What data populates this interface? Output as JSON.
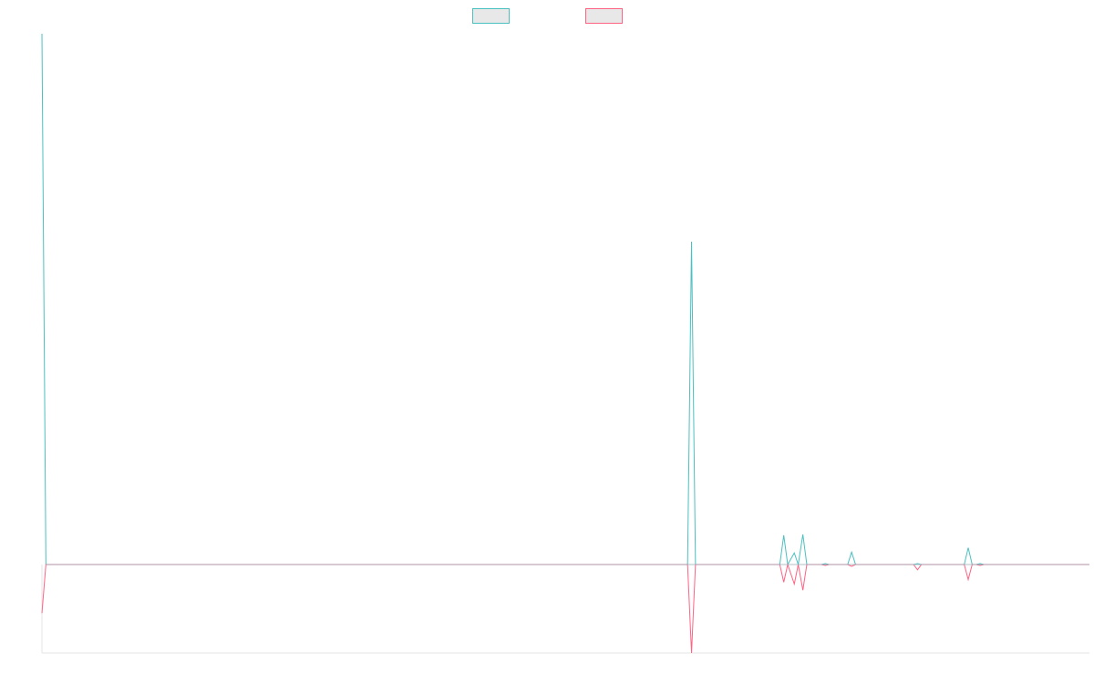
{
  "chart_data": {
    "type": "line",
    "title": "",
    "xlabel": "",
    "ylabel": "",
    "grid": false,
    "legend": {
      "position": "top-center"
    },
    "xlim": [
      0,
      159
    ],
    "ylim": [
      -100,
      600
    ],
    "series": [
      {
        "name": "",
        "color": "#4bc0c0",
        "fill": "#e8e8e8",
        "points": [
          [
            0,
            600
          ],
          [
            0.6,
            0
          ],
          [
            98,
            0
          ],
          [
            98.6,
            365
          ],
          [
            99.2,
            0
          ],
          [
            112,
            0
          ],
          [
            112.6,
            33
          ],
          [
            113.2,
            0
          ],
          [
            114.2,
            13
          ],
          [
            114.8,
            0
          ],
          [
            115.5,
            34
          ],
          [
            116.1,
            0
          ],
          [
            118.3,
            0
          ],
          [
            118.9,
            1
          ],
          [
            119.5,
            0
          ],
          [
            122.3,
            0
          ],
          [
            122.9,
            14
          ],
          [
            123.5,
            0
          ],
          [
            132.3,
            0
          ],
          [
            132.9,
            1
          ],
          [
            133.5,
            0
          ],
          [
            140,
            0
          ],
          [
            140.6,
            19
          ],
          [
            141.2,
            0
          ],
          [
            141.8,
            0
          ],
          [
            142.4,
            1
          ],
          [
            143,
            0
          ],
          [
            159,
            0
          ]
        ]
      },
      {
        "name": "",
        "color": "#ff6384",
        "fill": "#e8e8e8",
        "points": [
          [
            0,
            -55
          ],
          [
            0.6,
            0
          ],
          [
            98,
            0
          ],
          [
            98.6,
            -100
          ],
          [
            99.2,
            0
          ],
          [
            112,
            0
          ],
          [
            112.6,
            -20
          ],
          [
            113.2,
            0
          ],
          [
            114.2,
            -22
          ],
          [
            114.8,
            0
          ],
          [
            115.5,
            -29
          ],
          [
            116.1,
            0
          ],
          [
            118.3,
            0
          ],
          [
            118.9,
            -1
          ],
          [
            119.5,
            0
          ],
          [
            122.3,
            0
          ],
          [
            122.9,
            -2
          ],
          [
            123.5,
            0
          ],
          [
            132.3,
            0
          ],
          [
            132.9,
            -6
          ],
          [
            133.5,
            0
          ],
          [
            140,
            0
          ],
          [
            140.6,
            -17
          ],
          [
            141.2,
            0
          ],
          [
            141.8,
            0
          ],
          [
            142.4,
            -1
          ],
          [
            143,
            0
          ],
          [
            159,
            0
          ]
        ]
      }
    ]
  }
}
